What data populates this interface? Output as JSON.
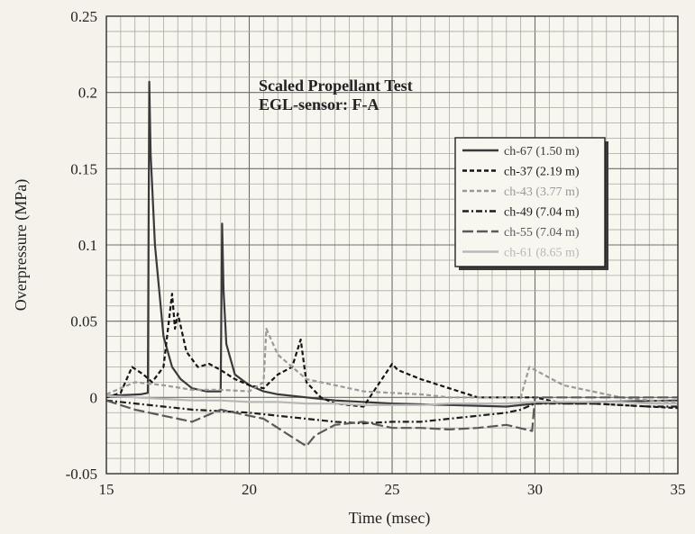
{
  "chart_data": {
    "type": "line",
    "title": "Scaled Propellant Test",
    "subtitle": "EGL-sensor: F-A",
    "xlabel": "Time (msec)",
    "ylabel": "Overpressure (MPa)",
    "xlim": [
      15,
      35
    ],
    "ylim": [
      -0.05,
      0.25
    ],
    "x_ticks": [
      "15",
      "20",
      "25",
      "30",
      "35"
    ],
    "y_ticks": [
      "-0.05",
      "0",
      "0.05",
      "0.1",
      "0.15",
      "0.2",
      "0.25"
    ],
    "grid": true,
    "legend_position": "top-right",
    "series": [
      {
        "name": "ch-67 (1.50 m)",
        "color": "#3a3a3a",
        "style": "solid",
        "x": [
          15,
          16.2,
          16.45,
          16.5,
          16.55,
          16.7,
          17.0,
          17.3,
          17.6,
          18.0,
          18.5,
          19.0,
          19.05,
          19.1,
          19.2,
          19.5,
          20.0,
          20.5,
          21.0,
          22.0,
          23.0,
          25.0,
          27.0,
          29.0,
          30.0,
          32.0,
          35.0
        ],
        "y": [
          0.001,
          0.002,
          0.003,
          0.207,
          0.16,
          0.1,
          0.04,
          0.02,
          0.012,
          0.006,
          0.004,
          0.004,
          0.114,
          0.07,
          0.035,
          0.015,
          0.008,
          0.004,
          0.002,
          0.0,
          -0.002,
          -0.004,
          -0.005,
          -0.006,
          -0.004,
          -0.003,
          -0.002
        ]
      },
      {
        "name": "ch-37 (2.19 m)",
        "color": "#151515",
        "style": "dashed",
        "x": [
          15,
          15.5,
          15.9,
          16.3,
          16.6,
          17.0,
          17.3,
          17.4,
          17.5,
          17.8,
          18.2,
          18.6,
          19.0,
          19.5,
          20.0,
          20.5,
          21.0,
          21.5,
          21.8,
          22.0,
          22.5,
          23.0,
          24.0,
          25.0,
          25.2,
          26.0,
          27.0,
          28.0,
          29.0,
          30.0,
          31.0,
          32.0,
          33.0,
          34.0,
          35.0
        ],
        "y": [
          0.0,
          0.003,
          0.02,
          0.015,
          0.01,
          0.02,
          0.068,
          0.045,
          0.055,
          0.03,
          0.02,
          0.022,
          0.018,
          0.012,
          0.008,
          0.006,
          0.015,
          0.02,
          0.038,
          0.01,
          0.0,
          -0.004,
          -0.006,
          0.022,
          0.018,
          0.012,
          0.006,
          0.0,
          0.0,
          0.0,
          -0.004,
          -0.004,
          -0.005,
          -0.006,
          -0.007
        ]
      },
      {
        "name": "ch-43 (3.77 m)",
        "color": "#9a9a9a",
        "style": "dashed",
        "x": [
          15,
          16.0,
          17.0,
          18.0,
          19.0,
          20.0,
          20.5,
          20.6,
          21.0,
          21.5,
          22.0,
          23.0,
          24.0,
          25.0,
          26.0,
          27.0,
          28.0,
          29.0,
          29.5,
          29.8,
          30.0,
          31.0,
          32.0,
          33.0,
          34.0,
          35.0
        ],
        "y": [
          0.002,
          0.01,
          0.008,
          0.005,
          0.005,
          0.004,
          0.01,
          0.045,
          0.028,
          0.02,
          0.012,
          0.008,
          0.004,
          0.003,
          0.002,
          0.0,
          0.0,
          0.0,
          0.0,
          0.02,
          0.018,
          0.008,
          0.004,
          0.0,
          -0.002,
          -0.003
        ]
      },
      {
        "name": "ch-49 (7.04 m)",
        "color": "#1e1e1e",
        "style": "dashdot",
        "x": [
          15,
          16.0,
          17.0,
          18.0,
          19.0,
          20.0,
          21.0,
          22.0,
          23.0,
          24.0,
          25.0,
          26.0,
          27.0,
          28.0,
          29.0,
          29.5,
          30.0,
          31.0,
          32.0,
          33.0,
          34.0,
          35.0
        ],
        "y": [
          -0.002,
          -0.004,
          -0.006,
          -0.008,
          -0.009,
          -0.01,
          -0.012,
          -0.014,
          -0.016,
          -0.017,
          -0.016,
          -0.016,
          -0.014,
          -0.012,
          -0.01,
          -0.008,
          -0.004,
          -0.004,
          -0.004,
          -0.005,
          -0.006,
          -0.006
        ]
      },
      {
        "name": "ch-55 (7.04 m)",
        "color": "#5a5a5a",
        "style": "longdash",
        "x": [
          15,
          15.5,
          16.0,
          16.5,
          17.0,
          17.5,
          18.0,
          18.5,
          19.0,
          19.5,
          20.0,
          20.5,
          21.0,
          21.5,
          22.0,
          22.3,
          23.0,
          24.0,
          25.0,
          26.0,
          27.0,
          28.0,
          29.0,
          29.9,
          30.0,
          31.0,
          32.0,
          33.0,
          34.0,
          35.0
        ],
        "y": [
          -0.002,
          -0.005,
          -0.008,
          -0.01,
          -0.012,
          -0.014,
          -0.016,
          -0.012,
          -0.008,
          -0.01,
          -0.012,
          -0.014,
          -0.02,
          -0.026,
          -0.032,
          -0.025,
          -0.018,
          -0.016,
          -0.02,
          -0.02,
          -0.021,
          -0.02,
          -0.018,
          -0.022,
          0.0,
          0.0,
          0.0,
          0.0,
          0.0,
          0.0
        ]
      },
      {
        "name": "ch-61 (8.65 m)",
        "color": "#b8b8b8",
        "style": "solid",
        "x": [
          15,
          16.0,
          17.0,
          18.0,
          19.0,
          20.0,
          21.0,
          22.0,
          23.0,
          24.0,
          25.0,
          26.0,
          27.0,
          28.0,
          29.0,
          30.0,
          31.0,
          32.0,
          33.0,
          34.0,
          35.0
        ],
        "y": [
          0.001,
          0.0,
          -0.001,
          -0.002,
          -0.002,
          -0.003,
          -0.003,
          -0.004,
          -0.004,
          -0.005,
          -0.005,
          -0.005,
          -0.004,
          -0.004,
          -0.004,
          -0.003,
          -0.003,
          -0.003,
          -0.003,
          -0.004,
          -0.004
        ]
      }
    ]
  }
}
